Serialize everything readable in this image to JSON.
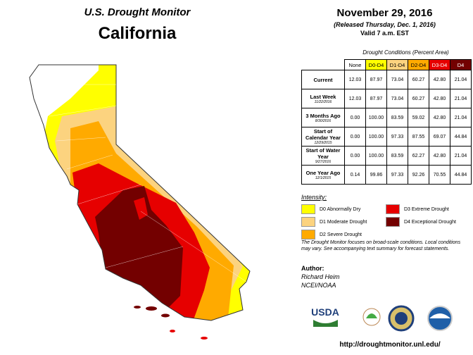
{
  "header": {
    "title": "U.S. Drought Monitor",
    "state": "California"
  },
  "info": {
    "date": "November 29, 2016",
    "released": "(Released Thursday, Dec. 1, 2016)",
    "valid": "Valid 7 a.m. EST"
  },
  "table": {
    "caption": "Drought Conditions (Percent Area)",
    "columns": [
      {
        "label": "None",
        "color": "#ffffff"
      },
      {
        "label": "D0-D4",
        "color": "#ffff00"
      },
      {
        "label": "D1-D4",
        "color": "#fcd37f"
      },
      {
        "label": "D2-D4",
        "color": "#ffaa00"
      },
      {
        "label": "D3-D4",
        "color": "#e60000"
      },
      {
        "label": "D4",
        "color": "#730000"
      }
    ],
    "rows": [
      {
        "label": "Current",
        "values": [
          "12.03",
          "87.97",
          "73.04",
          "60.27",
          "42.80",
          "21.04"
        ]
      },
      {
        "label": "Last Week",
        "date": "11/22/2016",
        "values": [
          "12.03",
          "87.97",
          "73.04",
          "60.27",
          "42.80",
          "21.04"
        ]
      },
      {
        "label": "3 Months Ago",
        "date": "8/30/2016",
        "values": [
          "0.00",
          "100.00",
          "83.59",
          "59.02",
          "42.80",
          "21.04"
        ]
      },
      {
        "label": "Start of Calendar Year",
        "date": "12/29/2015",
        "values": [
          "0.00",
          "100.00",
          "97.33",
          "87.55",
          "69.07",
          "44.84"
        ]
      },
      {
        "label": "Start of Water Year",
        "date": "9/27/2016",
        "values": [
          "0.00",
          "100.00",
          "83.59",
          "62.27",
          "42.80",
          "21.04"
        ]
      },
      {
        "label": "One Year Ago",
        "date": "12/1/2015",
        "values": [
          "0.14",
          "99.86",
          "97.33",
          "92.26",
          "70.55",
          "44.84"
        ]
      }
    ]
  },
  "legend": {
    "title": "Intensity:",
    "items": [
      {
        "label": "D0 Abnormally Dry",
        "color": "#ffff00"
      },
      {
        "label": "D1 Moderate Drought",
        "color": "#fcd37f"
      },
      {
        "label": "D2 Severe Drought",
        "color": "#ffaa00"
      },
      {
        "label": "D3 Extreme Drought",
        "color": "#e60000"
      },
      {
        "label": "D4 Exceptional Drought",
        "color": "#730000"
      }
    ]
  },
  "note": "The Drought Monitor focuses on broad-scale conditions. Local conditions may vary. See accompanying text summary for forecast statements.",
  "author": {
    "heading": "Author:",
    "name": "Richard Heim",
    "org": "NCEI/NOAA"
  },
  "logo": "USDA",
  "url": "http://droughtmonitor.unl.edu/"
}
